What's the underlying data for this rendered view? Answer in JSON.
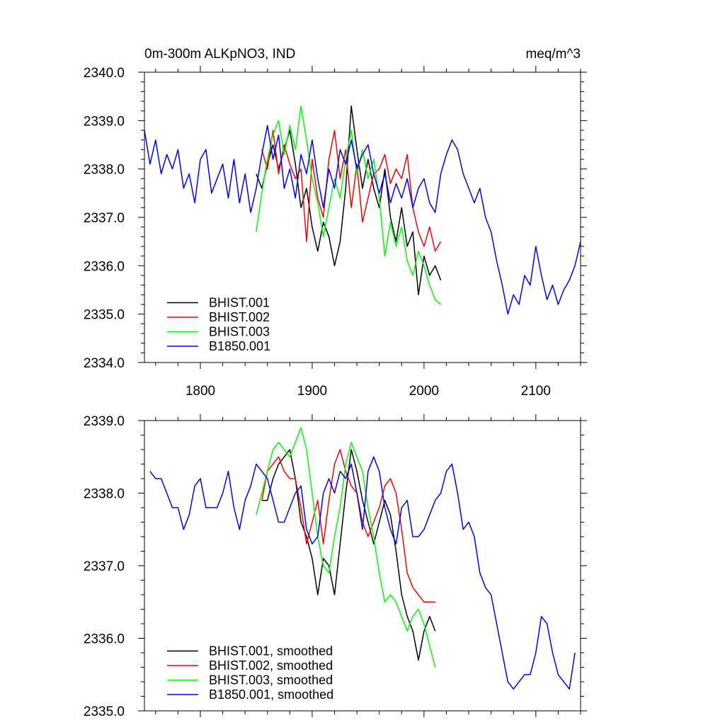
{
  "chart_data": [
    {
      "type": "line",
      "title": "0m-300m ALKpNO3, IND",
      "units": "meq/m^3",
      "xlim": [
        1750,
        2140
      ],
      "ylim": [
        2334,
        2340
      ],
      "xticks": [
        1800,
        1900,
        2000,
        2100
      ],
      "yticks": [
        "2334.0",
        "2335.0",
        "2336.0",
        "2337.0",
        "2338.0",
        "2339.0",
        "2340.0"
      ],
      "legend_position": "bottom-left",
      "series": [
        {
          "name": "BHIST.001",
          "color": "#000000",
          "x": [
            1850,
            1855,
            1860,
            1865,
            1870,
            1875,
            1880,
            1885,
            1890,
            1895,
            1900,
            1905,
            1910,
            1915,
            1920,
            1925,
            1930,
            1935,
            1940,
            1945,
            1950,
            1955,
            1960,
            1965,
            1970,
            1975,
            1980,
            1985,
            1990,
            1995,
            2000,
            2005,
            2010,
            2015
          ],
          "y": [
            2337.9,
            2337.6,
            2338.1,
            2338.5,
            2338.0,
            2338.4,
            2338.8,
            2338.1,
            2337.2,
            2337.6,
            2336.8,
            2336.3,
            2336.9,
            2336.6,
            2336.0,
            2336.5,
            2337.6,
            2339.3,
            2338.4,
            2337.6,
            2338.2,
            2337.6,
            2337.2,
            2338.0,
            2337.0,
            2336.5,
            2337.2,
            2336.4,
            2336.7,
            2335.4,
            2336.2,
            2335.8,
            2336.0,
            2335.7
          ]
        },
        {
          "name": "BHIST.002",
          "color": "#ff0000",
          "x": [
            1855,
            1860,
            1865,
            1870,
            1875,
            1880,
            1885,
            1890,
            1895,
            1900,
            1905,
            1910,
            1915,
            1920,
            1925,
            1930,
            1935,
            1940,
            1945,
            1950,
            1955,
            1960,
            1965,
            1970,
            1975,
            1980,
            1985,
            1990,
            1995,
            2000,
            2005,
            2010,
            2015
          ],
          "y": [
            2338.4,
            2338.0,
            2338.8,
            2337.9,
            2338.5,
            2338.1,
            2337.8,
            2338.0,
            2336.5,
            2338.2,
            2337.4,
            2337.0,
            2338.2,
            2338.8,
            2337.8,
            2338.4,
            2337.2,
            2338.1,
            2336.9,
            2337.4,
            2337.9,
            2338.0,
            2338.3,
            2337.7,
            2338.0,
            2337.8,
            2338.3,
            2337.2,
            2336.7,
            2336.4,
            2336.8,
            2336.3,
            2336.5
          ]
        },
        {
          "name": "BHIST.003",
          "color": "#00ff00",
          "x": [
            1850,
            1855,
            1860,
            1865,
            1870,
            1875,
            1880,
            1885,
            1890,
            1895,
            1900,
            1905,
            1910,
            1915,
            1920,
            1925,
            1930,
            1935,
            1940,
            1945,
            1950,
            1955,
            1960,
            1965,
            1970,
            1975,
            1980,
            1985,
            1990,
            1995,
            2000,
            2005,
            2010,
            2015
          ],
          "y": [
            2336.7,
            2337.5,
            2338.2,
            2338.7,
            2339.0,
            2338.3,
            2338.9,
            2338.4,
            2339.3,
            2338.6,
            2337.8,
            2337.3,
            2336.6,
            2337.2,
            2337.8,
            2337.4,
            2338.2,
            2338.8,
            2337.9,
            2338.4,
            2337.8,
            2338.2,
            2337.4,
            2336.2,
            2336.9,
            2336.4,
            2336.8,
            2336.1,
            2335.8,
            2336.3,
            2336.0,
            2335.6,
            2335.3,
            2335.2
          ]
        },
        {
          "name": "B1850.001",
          "color": "#0000ff",
          "x": [
            1750,
            1755,
            1760,
            1765,
            1770,
            1775,
            1780,
            1785,
            1790,
            1795,
            1800,
            1805,
            1810,
            1815,
            1820,
            1825,
            1830,
            1835,
            1840,
            1845,
            1850,
            1855,
            1860,
            1865,
            1870,
            1875,
            1880,
            1885,
            1890,
            1895,
            1900,
            1905,
            1910,
            1915,
            1920,
            1925,
            1930,
            1935,
            1940,
            1945,
            1950,
            1955,
            1960,
            1965,
            1970,
            1975,
            1980,
            1985,
            1990,
            1995,
            2000,
            2005,
            2010,
            2015,
            2020,
            2025,
            2030,
            2035,
            2040,
            2045,
            2050,
            2055,
            2060,
            2065,
            2070,
            2075,
            2080,
            2085,
            2090,
            2095,
            2100,
            2105,
            2110,
            2115,
            2120,
            2125,
            2130,
            2135,
            2140
          ],
          "y": [
            2338.8,
            2338.1,
            2338.6,
            2337.9,
            2338.3,
            2338.0,
            2338.4,
            2337.6,
            2337.9,
            2337.3,
            2338.2,
            2338.4,
            2337.5,
            2337.8,
            2338.1,
            2337.4,
            2338.2,
            2337.3,
            2337.9,
            2337.1,
            2337.6,
            2338.3,
            2338.9,
            2338.2,
            2338.7,
            2337.6,
            2338.0,
            2337.4,
            2338.3,
            2337.9,
            2338.6,
            2337.8,
            2337.2,
            2338.0,
            2337.6,
            2338.4,
            2338.1,
            2338.6,
            2338.0,
            2338.3,
            2338.5,
            2337.9,
            2337.5,
            2337.9,
            2337.3,
            2337.7,
            2337.4,
            2337.8,
            2337.2,
            2337.6,
            2337.8,
            2337.3,
            2337.1,
            2337.9,
            2338.3,
            2338.6,
            2338.4,
            2337.9,
            2337.6,
            2337.3,
            2337.6,
            2337.0,
            2336.7,
            2336.1,
            2335.6,
            2335.0,
            2335.4,
            2335.2,
            2335.8,
            2335.6,
            2336.4,
            2335.8,
            2335.3,
            2335.6,
            2335.2,
            2335.5,
            2335.7,
            2336.0,
            2336.5
          ]
        }
      ]
    },
    {
      "type": "line",
      "xlim": [
        1750,
        2140
      ],
      "ylim": [
        2335,
        2339
      ],
      "xticks": [
        1800,
        1900,
        2000,
        2100
      ],
      "yticks": [
        "2335.0",
        "2336.0",
        "2337.0",
        "2338.0",
        "2339.0"
      ],
      "legend_position": "bottom-left",
      "series": [
        {
          "name": "BHIST.001, smoothed",
          "color": "#000000",
          "x": [
            1855,
            1860,
            1865,
            1870,
            1875,
            1880,
            1885,
            1890,
            1895,
            1900,
            1905,
            1910,
            1915,
            1920,
            1925,
            1930,
            1935,
            1940,
            1945,
            1950,
            1955,
            1960,
            1965,
            1970,
            1975,
            1980,
            1985,
            1990,
            1995,
            2000,
            2005,
            2010
          ],
          "y": [
            2337.9,
            2337.9,
            2338.2,
            2338.4,
            2338.5,
            2338.6,
            2338.2,
            2337.6,
            2337.4,
            2337.1,
            2336.6,
            2337.1,
            2337.0,
            2336.6,
            2337.3,
            2338.0,
            2338.6,
            2338.3,
            2337.9,
            2337.6,
            2337.3,
            2337.6,
            2337.9,
            2337.7,
            2337.2,
            2336.6,
            2336.3,
            2336.1,
            2335.7,
            2336.1,
            2336.3,
            2336.1
          ]
        },
        {
          "name": "BHIST.002, smoothed",
          "color": "#ff0000",
          "x": [
            1855,
            1860,
            1865,
            1870,
            1875,
            1880,
            1885,
            1890,
            1895,
            1900,
            1905,
            1910,
            1915,
            1920,
            1925,
            1930,
            1935,
            1940,
            1945,
            1950,
            1955,
            1960,
            1965,
            1970,
            1975,
            1980,
            1985,
            1990,
            1995,
            2000,
            2005,
            2010
          ],
          "y": [
            2337.9,
            2338.3,
            2338.4,
            2338.5,
            2338.3,
            2338.2,
            2338.2,
            2337.8,
            2337.3,
            2337.6,
            2337.9,
            2337.3,
            2337.9,
            2338.4,
            2338.6,
            2338.3,
            2338.1,
            2338.0,
            2337.6,
            2337.4,
            2337.6,
            2337.8,
            2338.1,
            2338.2,
            2338.0,
            2337.5,
            2336.9,
            2336.7,
            2336.6,
            2336.5,
            2336.5,
            2336.5
          ]
        },
        {
          "name": "BHIST.003, smoothed",
          "color": "#00ff00",
          "x": [
            1850,
            1855,
            1860,
            1865,
            1870,
            1875,
            1880,
            1885,
            1890,
            1895,
            1900,
            1905,
            1910,
            1915,
            1920,
            1925,
            1930,
            1935,
            1940,
            1945,
            1950,
            1955,
            1960,
            1965,
            1970,
            1975,
            1980,
            1985,
            1990,
            1995,
            2000,
            2005,
            2010
          ],
          "y": [
            2337.7,
            2338.0,
            2338.3,
            2338.6,
            2338.7,
            2338.6,
            2338.5,
            2338.7,
            2338.9,
            2338.6,
            2338.0,
            2337.4,
            2337.0,
            2336.9,
            2337.4,
            2337.8,
            2338.4,
            2338.7,
            2338.5,
            2338.3,
            2337.8,
            2337.4,
            2336.9,
            2336.5,
            2336.6,
            2336.5,
            2336.3,
            2336.1,
            2336.3,
            2336.4,
            2336.2,
            2335.9,
            2335.6
          ]
        },
        {
          "name": "B1850.001, smoothed",
          "color": "#0000ff",
          "x": [
            1755,
            1760,
            1765,
            1770,
            1775,
            1780,
            1785,
            1790,
            1795,
            1800,
            1805,
            1810,
            1815,
            1820,
            1825,
            1830,
            1835,
            1840,
            1845,
            1850,
            1855,
            1860,
            1865,
            1870,
            1875,
            1880,
            1885,
            1890,
            1895,
            1900,
            1905,
            1910,
            1915,
            1920,
            1925,
            1930,
            1935,
            1940,
            1945,
            1950,
            1955,
            1960,
            1965,
            1970,
            1975,
            1980,
            1985,
            1990,
            1995,
            2000,
            2005,
            2010,
            2015,
            2020,
            2025,
            2030,
            2035,
            2040,
            2045,
            2050,
            2055,
            2060,
            2065,
            2070,
            2075,
            2080,
            2085,
            2090,
            2095,
            2100,
            2105,
            2110,
            2115,
            2120,
            2125,
            2130,
            2135
          ],
          "y": [
            2338.3,
            2338.2,
            2338.2,
            2338.0,
            2337.8,
            2337.8,
            2337.5,
            2337.7,
            2338.1,
            2338.2,
            2337.8,
            2337.8,
            2337.8,
            2338.0,
            2338.3,
            2337.8,
            2337.5,
            2337.9,
            2338.1,
            2338.4,
            2338.3,
            2338.2,
            2337.9,
            2337.6,
            2337.6,
            2337.8,
            2338.0,
            2338.1,
            2337.5,
            2337.3,
            2337.4,
            2338.0,
            2338.2,
            2338.0,
            2338.3,
            2338.2,
            2338.4,
            2338.0,
            2337.5,
            2338.3,
            2338.5,
            2338.3,
            2337.8,
            2337.5,
            2337.3,
            2337.8,
            2337.9,
            2337.4,
            2337.4,
            2337.5,
            2337.7,
            2337.9,
            2338.0,
            2338.3,
            2338.4,
            2338.0,
            2337.5,
            2337.6,
            2337.4,
            2336.9,
            2336.7,
            2336.6,
            2336.2,
            2335.8,
            2335.4,
            2335.3,
            2335.4,
            2335.5,
            2335.5,
            2335.8,
            2336.3,
            2336.2,
            2335.8,
            2335.5,
            2335.4,
            2335.3,
            2335.8
          ]
        }
      ]
    }
  ]
}
